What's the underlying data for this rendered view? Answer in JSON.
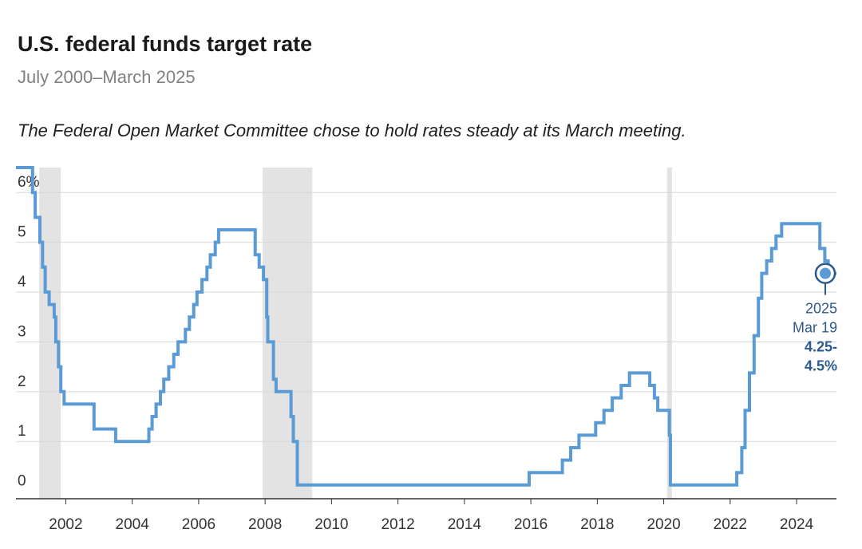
{
  "colors": {
    "line": "#5b9bd5",
    "recession": "#e3e3e3",
    "grid": "#d7d7d7",
    "axis": "#333333",
    "marker": "#2d5a8e"
  },
  "chart_data": {
    "type": "line",
    "title": "U.S. federal funds target rate",
    "subtitle": "July 2000–March 2025",
    "note": "The Federal Open Market Committee chose to hold rates steady at its March meeting.",
    "step": true,
    "yticks": [
      "0",
      "1",
      "2",
      "3",
      "4",
      "5",
      "6%"
    ],
    "ytick_values": [
      0,
      1,
      2,
      3,
      4,
      5,
      6
    ],
    "xticks": [
      "2002",
      "2004",
      "2006",
      "2008",
      "2010",
      "2012",
      "2014",
      "2016",
      "2018",
      "2020",
      "2022",
      "2024"
    ],
    "xtick_values": [
      2002,
      2004,
      2006,
      2008,
      2010,
      2012,
      2014,
      2016,
      2018,
      2020,
      2022,
      2024
    ],
    "xlim": [
      2000.5,
      2025.2
    ],
    "ylim": [
      -0.15,
      6.5
    ],
    "grid": true,
    "recessions": [
      [
        2001.2,
        2001.85
      ],
      [
        2007.92,
        2009.42
      ],
      [
        2020.1,
        2020.25
      ]
    ],
    "series": [
      {
        "points": [
          [
            2000.5,
            6.5
          ],
          [
            2001.0,
            6.0
          ],
          [
            2001.08,
            5.5
          ],
          [
            2001.22,
            5.0
          ],
          [
            2001.3,
            4.5
          ],
          [
            2001.38,
            4.0
          ],
          [
            2001.5,
            3.75
          ],
          [
            2001.65,
            3.5
          ],
          [
            2001.7,
            3.0
          ],
          [
            2001.78,
            2.5
          ],
          [
            2001.85,
            2.0
          ],
          [
            2001.95,
            1.75
          ],
          [
            2002.85,
            1.25
          ],
          [
            2003.5,
            1.0
          ],
          [
            2004.5,
            1.25
          ],
          [
            2004.6,
            1.5
          ],
          [
            2004.72,
            1.75
          ],
          [
            2004.85,
            2.0
          ],
          [
            2004.95,
            2.25
          ],
          [
            2005.1,
            2.5
          ],
          [
            2005.25,
            2.75
          ],
          [
            2005.38,
            3.0
          ],
          [
            2005.6,
            3.25
          ],
          [
            2005.72,
            3.5
          ],
          [
            2005.85,
            3.75
          ],
          [
            2005.95,
            4.0
          ],
          [
            2006.1,
            4.25
          ],
          [
            2006.25,
            4.5
          ],
          [
            2006.35,
            4.75
          ],
          [
            2006.5,
            5.0
          ],
          [
            2006.6,
            5.25
          ],
          [
            2007.7,
            4.75
          ],
          [
            2007.82,
            4.5
          ],
          [
            2007.95,
            4.25
          ],
          [
            2008.05,
            3.5
          ],
          [
            2008.08,
            3.0
          ],
          [
            2008.25,
            2.25
          ],
          [
            2008.33,
            2.0
          ],
          [
            2008.78,
            1.5
          ],
          [
            2008.85,
            1.0
          ],
          [
            2008.97,
            0.125
          ],
          [
            2015.95,
            0.375
          ],
          [
            2016.95,
            0.625
          ],
          [
            2017.2,
            0.875
          ],
          [
            2017.45,
            1.125
          ],
          [
            2017.95,
            1.375
          ],
          [
            2018.2,
            1.625
          ],
          [
            2018.45,
            1.875
          ],
          [
            2018.72,
            2.125
          ],
          [
            2018.97,
            2.375
          ],
          [
            2019.58,
            2.125
          ],
          [
            2019.72,
            1.875
          ],
          [
            2019.82,
            1.625
          ],
          [
            2020.17,
            1.125
          ],
          [
            2020.2,
            0.125
          ],
          [
            2022.2,
            0.375
          ],
          [
            2022.35,
            0.875
          ],
          [
            2022.45,
            1.625
          ],
          [
            2022.58,
            2.375
          ],
          [
            2022.72,
            3.125
          ],
          [
            2022.85,
            3.875
          ],
          [
            2022.95,
            4.375
          ],
          [
            2023.1,
            4.625
          ],
          [
            2023.25,
            4.875
          ],
          [
            2023.38,
            5.125
          ],
          [
            2023.55,
            5.375
          ],
          [
            2024.7,
            4.875
          ],
          [
            2024.85,
            4.625
          ],
          [
            2024.95,
            4.375
          ],
          [
            2025.2,
            4.375
          ]
        ]
      }
    ],
    "annotation": {
      "x": 2025.2,
      "y": 4.375,
      "year": "2025",
      "date": "Mar 19",
      "value_line1": "4.25-",
      "value_line2": "4.5%"
    }
  }
}
